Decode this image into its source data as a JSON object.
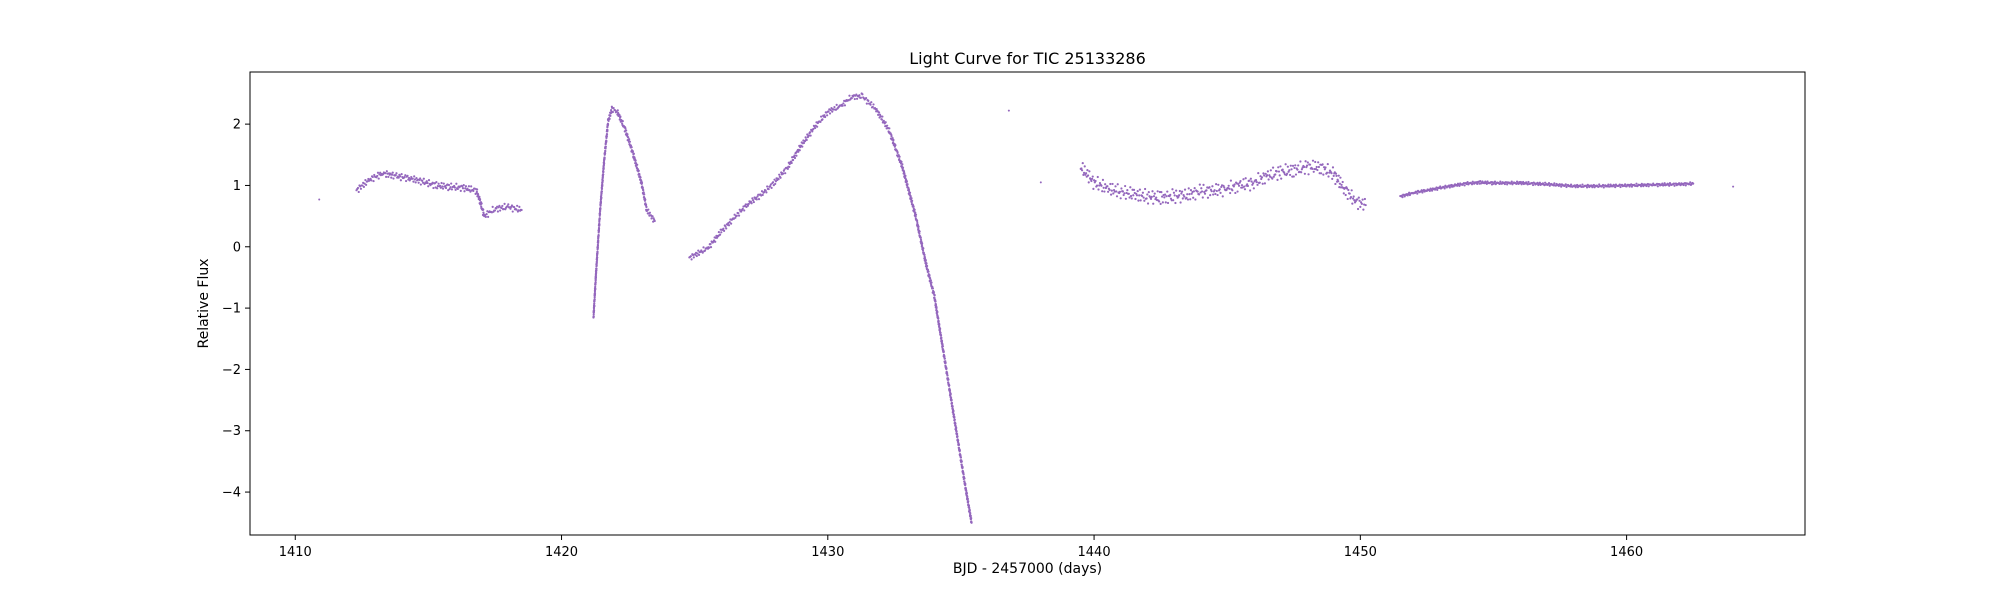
{
  "chart_data": {
    "type": "scatter",
    "title": "Light Curve for TIC 25133286",
    "xlabel": "BJD - 2457000 (days)",
    "ylabel": "Relative Flux",
    "xlim": [
      1408.3,
      1466.7
    ],
    "ylim": [
      -4.7,
      2.85
    ],
    "xticks": [
      1410,
      1420,
      1430,
      1440,
      1450,
      1460
    ],
    "yticks": [
      -4,
      -3,
      -2,
      -1,
      0,
      1,
      2
    ],
    "grid": false,
    "legend": "none",
    "marker_color": "#9467bd",
    "series": [
      {
        "segments": [
          {
            "points": [
              [
                1410.9,
                0.77
              ]
            ]
          },
          {
            "points": [
              [
                1412.3,
                0.92
              ],
              [
                1412.8,
                1.1
              ],
              [
                1413.3,
                1.2
              ],
              [
                1413.8,
                1.15
              ],
              [
                1414.3,
                1.12
              ],
              [
                1414.8,
                1.06
              ],
              [
                1415.3,
                1.0
              ],
              [
                1415.8,
                0.98
              ],
              [
                1416.3,
                0.96
              ],
              [
                1416.8,
                0.92
              ],
              [
                1416.9,
                0.8
              ],
              [
                1417.1,
                0.5
              ],
              [
                1417.5,
                0.62
              ],
              [
                1418.0,
                0.65
              ],
              [
                1418.5,
                0.6
              ]
            ],
            "spread": 0.06
          },
          {
            "points": [
              [
                1421.2,
                -1.15
              ],
              [
                1421.3,
                -0.4
              ],
              [
                1421.45,
                0.6
              ],
              [
                1421.6,
                1.4
              ],
              [
                1421.75,
                2.05
              ],
              [
                1421.9,
                2.25
              ],
              [
                1422.1,
                2.2
              ],
              [
                1422.4,
                1.9
              ],
              [
                1422.7,
                1.5
              ],
              [
                1423.0,
                1.05
              ],
              [
                1423.2,
                0.6
              ],
              [
                1423.5,
                0.42
              ]
            ],
            "spread": 0.05
          },
          {
            "points": [
              [
                1424.8,
                -0.18
              ],
              [
                1425.5,
                -0.02
              ],
              [
                1426.0,
                0.25
              ],
              [
                1426.5,
                0.48
              ],
              [
                1427.0,
                0.7
              ],
              [
                1427.5,
                0.85
              ],
              [
                1428.0,
                1.05
              ],
              [
                1428.5,
                1.3
              ],
              [
                1429.0,
                1.65
              ],
              [
                1429.5,
                1.95
              ],
              [
                1430.0,
                2.2
              ],
              [
                1430.5,
                2.3
              ],
              [
                1430.9,
                2.45
              ],
              [
                1431.3,
                2.45
              ],
              [
                1431.8,
                2.25
              ],
              [
                1432.3,
                1.9
              ],
              [
                1432.8,
                1.3
              ],
              [
                1433.3,
                0.5
              ],
              [
                1433.7,
                -0.3
              ],
              [
                1434.0,
                -0.8
              ],
              [
                1434.3,
                -1.6
              ],
              [
                1434.6,
                -2.4
              ],
              [
                1434.9,
                -3.2
              ],
              [
                1435.2,
                -4.0
              ],
              [
                1435.4,
                -4.5
              ]
            ],
            "spread": 0.05
          },
          {
            "points": [
              [
                1436.8,
                2.22
              ]
            ]
          },
          {
            "points": [
              [
                1438.0,
                1.05
              ]
            ]
          },
          {
            "points": [
              [
                1439.5,
                1.3
              ],
              [
                1440.0,
                1.05
              ],
              [
                1440.5,
                0.95
              ],
              [
                1441.0,
                0.9
              ],
              [
                1441.5,
                0.85
              ],
              [
                1442.0,
                0.82
              ],
              [
                1442.5,
                0.8
              ],
              [
                1443.0,
                0.82
              ],
              [
                1443.5,
                0.85
              ],
              [
                1444.0,
                0.9
              ],
              [
                1444.5,
                0.92
              ],
              [
                1445.0,
                0.95
              ],
              [
                1445.5,
                1.0
              ],
              [
                1446.0,
                1.05
              ],
              [
                1446.5,
                1.15
              ],
              [
                1447.0,
                1.22
              ],
              [
                1447.5,
                1.25
              ],
              [
                1448.0,
                1.3
              ],
              [
                1448.5,
                1.3
              ],
              [
                1449.0,
                1.18
              ],
              [
                1449.4,
                0.95
              ],
              [
                1449.8,
                0.75
              ],
              [
                1450.2,
                0.68
              ]
            ],
            "spread": 0.12
          },
          {
            "points": [
              [
                1451.5,
                0.82
              ],
              [
                1452.0,
                0.88
              ],
              [
                1452.5,
                0.92
              ],
              [
                1453.0,
                0.96
              ],
              [
                1453.5,
                1.0
              ],
              [
                1454.0,
                1.03
              ],
              [
                1454.5,
                1.05
              ],
              [
                1455.0,
                1.04
              ],
              [
                1456.0,
                1.04
              ],
              [
                1457.0,
                1.02
              ],
              [
                1458.0,
                0.99
              ],
              [
                1459.0,
                0.99
              ],
              [
                1460.0,
                1.0
              ],
              [
                1461.0,
                1.01
              ],
              [
                1462.0,
                1.02
              ],
              [
                1462.5,
                1.03
              ]
            ],
            "spread": 0.025
          },
          {
            "points": [
              [
                1464.0,
                0.98
              ]
            ]
          }
        ]
      }
    ]
  }
}
